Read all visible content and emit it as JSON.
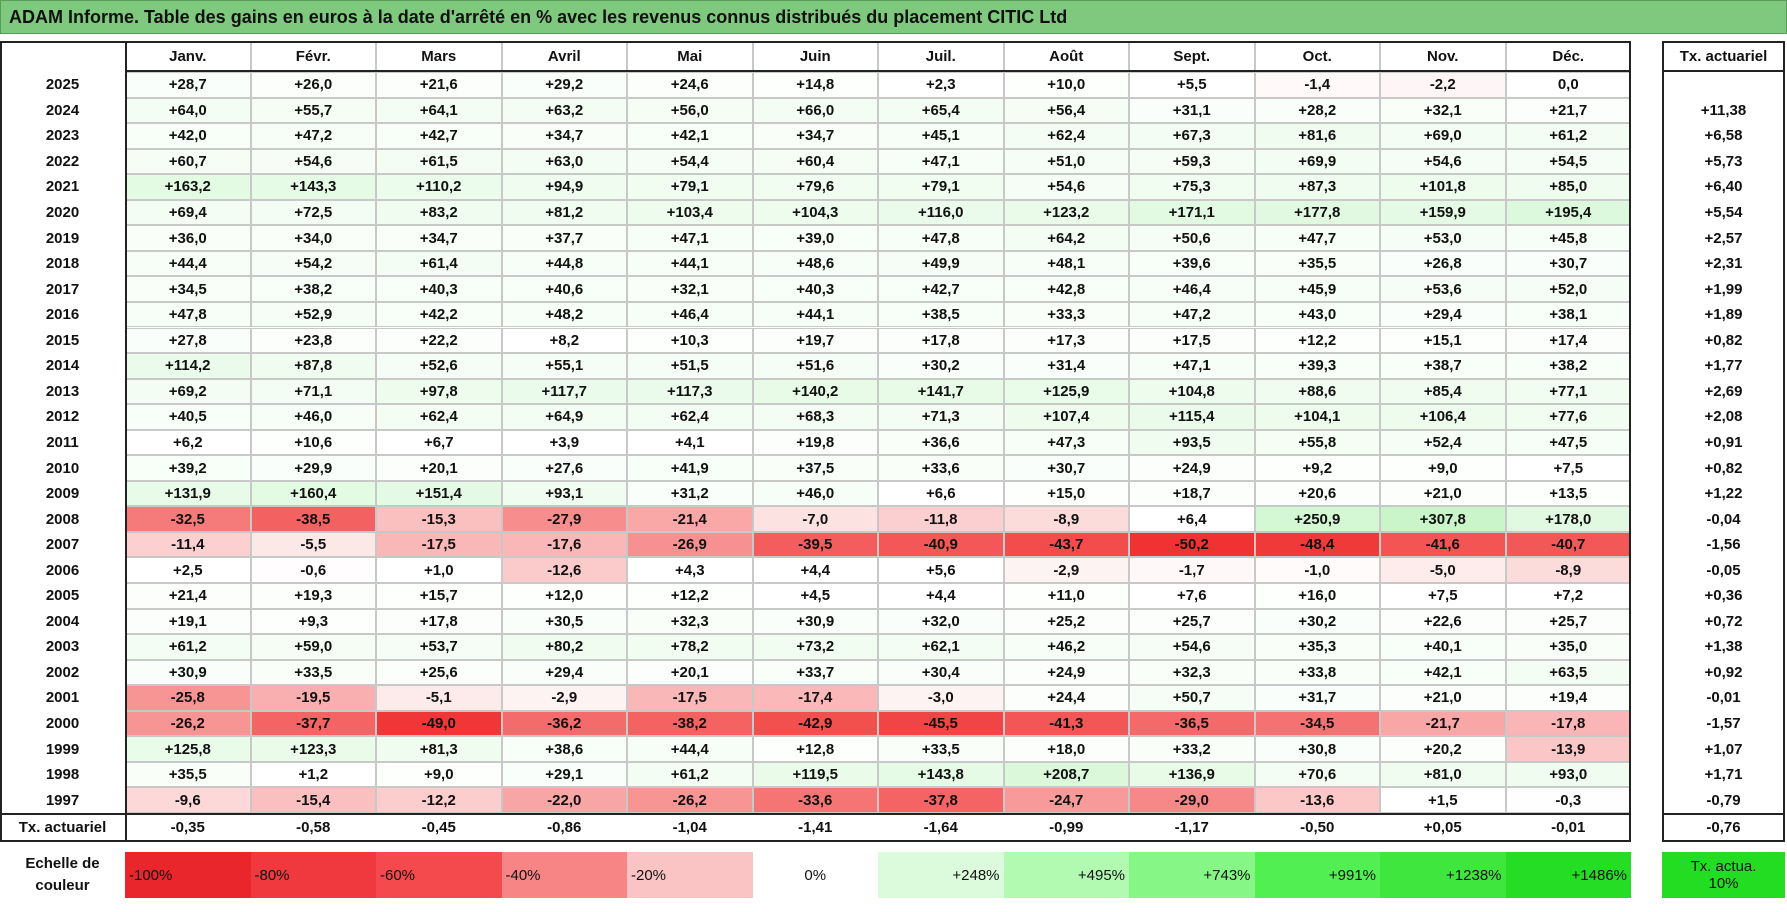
{
  "header": {
    "title": "ADAM Informe. Table des gains en euros à la date d'arrêté en % avec les revenus connus distribués du placement CITIC Ltd"
  },
  "table": {
    "columns": [
      "Janv.",
      "Févr.",
      "Mars",
      "Avril",
      "Mai",
      "Juin",
      "Juil.",
      "Août",
      "Sept.",
      "Oct.",
      "Nov.",
      "Déc."
    ],
    "rate_column": "Tx. actuariel",
    "rows": [
      {
        "label": "2025",
        "values": [
          "+28,7",
          "+26,0",
          "+21,6",
          "+29,2",
          "+24,6",
          "+14,8",
          "+2,3",
          "+10,0",
          "+5,5",
          "-1,4",
          "-2,2",
          "0,0"
        ]
      },
      {
        "label": "2024",
        "values": [
          "+64,0",
          "+55,7",
          "+64,1",
          "+63,2",
          "+56,0",
          "+66,0",
          "+65,4",
          "+56,4",
          "+31,1",
          "+28,2",
          "+32,1",
          "+21,7"
        ],
        "rate": "+11,38"
      },
      {
        "label": "2023",
        "values": [
          "+42,0",
          "+47,2",
          "+42,7",
          "+34,7",
          "+42,1",
          "+34,7",
          "+45,1",
          "+62,4",
          "+67,3",
          "+81,6",
          "+69,0",
          "+61,2"
        ],
        "rate": "+6,58"
      },
      {
        "label": "2022",
        "values": [
          "+60,7",
          "+54,6",
          "+61,5",
          "+63,0",
          "+54,4",
          "+60,4",
          "+47,1",
          "+51,0",
          "+59,3",
          "+69,9",
          "+54,6",
          "+54,5"
        ],
        "rate": "+5,73"
      },
      {
        "label": "2021",
        "values": [
          "+163,2",
          "+143,3",
          "+110,2",
          "+94,9",
          "+79,1",
          "+79,6",
          "+79,1",
          "+54,6",
          "+75,3",
          "+87,3",
          "+101,8",
          "+85,0"
        ],
        "rate": "+6,40"
      },
      {
        "label": "2020",
        "values": [
          "+69,4",
          "+72,5",
          "+83,2",
          "+81,2",
          "+103,4",
          "+104,3",
          "+116,0",
          "+123,2",
          "+171,1",
          "+177,8",
          "+159,9",
          "+195,4"
        ],
        "rate": "+5,54"
      },
      {
        "label": "2019",
        "values": [
          "+36,0",
          "+34,0",
          "+34,7",
          "+37,7",
          "+47,1",
          "+39,0",
          "+47,8",
          "+64,2",
          "+50,6",
          "+47,7",
          "+53,0",
          "+45,8"
        ],
        "rate": "+2,57"
      },
      {
        "label": "2018",
        "values": [
          "+44,4",
          "+54,2",
          "+61,4",
          "+44,8",
          "+44,1",
          "+48,6",
          "+49,9",
          "+48,1",
          "+39,6",
          "+35,5",
          "+26,8",
          "+30,7"
        ],
        "rate": "+2,31"
      },
      {
        "label": "2017",
        "values": [
          "+34,5",
          "+38,2",
          "+40,3",
          "+40,6",
          "+32,1",
          "+40,3",
          "+42,7",
          "+42,8",
          "+46,4",
          "+45,9",
          "+53,6",
          "+52,0"
        ],
        "rate": "+1,99"
      },
      {
        "label": "2016",
        "values": [
          "+47,8",
          "+52,9",
          "+42,2",
          "+48,2",
          "+46,4",
          "+44,1",
          "+38,5",
          "+33,3",
          "+47,2",
          "+43,0",
          "+29,4",
          "+38,1"
        ],
        "rate": "+1,89"
      },
      {
        "label": "2015",
        "values": [
          "+27,8",
          "+23,8",
          "+22,2",
          "+8,2",
          "+10,3",
          "+19,7",
          "+17,8",
          "+17,3",
          "+17,5",
          "+12,2",
          "+15,1",
          "+17,4"
        ],
        "rate": "+0,82"
      },
      {
        "label": "2014",
        "values": [
          "+114,2",
          "+87,8",
          "+52,6",
          "+55,1",
          "+51,5",
          "+51,6",
          "+30,2",
          "+31,4",
          "+47,1",
          "+39,3",
          "+38,7",
          "+38,2"
        ],
        "rate": "+1,77"
      },
      {
        "label": "2013",
        "values": [
          "+69,2",
          "+71,1",
          "+97,8",
          "+117,7",
          "+117,3",
          "+140,2",
          "+141,7",
          "+125,9",
          "+104,8",
          "+88,6",
          "+85,4",
          "+77,1"
        ],
        "rate": "+2,69"
      },
      {
        "label": "2012",
        "values": [
          "+40,5",
          "+46,0",
          "+62,4",
          "+64,9",
          "+62,4",
          "+68,3",
          "+71,3",
          "+107,4",
          "+115,4",
          "+104,1",
          "+106,4",
          "+77,6"
        ],
        "rate": "+2,08"
      },
      {
        "label": "2011",
        "values": [
          "+6,2",
          "+10,6",
          "+6,7",
          "+3,9",
          "+4,1",
          "+19,8",
          "+36,6",
          "+47,3",
          "+93,5",
          "+55,8",
          "+52,4",
          "+47,5"
        ],
        "rate": "+0,91"
      },
      {
        "label": "2010",
        "values": [
          "+39,2",
          "+29,9",
          "+20,1",
          "+27,6",
          "+41,9",
          "+37,5",
          "+33,6",
          "+30,7",
          "+24,9",
          "+9,2",
          "+9,0",
          "+7,5"
        ],
        "rate": "+0,82"
      },
      {
        "label": "2009",
        "values": [
          "+131,9",
          "+160,4",
          "+151,4",
          "+93,1",
          "+31,2",
          "+46,0",
          "+6,6",
          "+15,0",
          "+18,7",
          "+20,6",
          "+21,0",
          "+13,5"
        ],
        "rate": "+1,22"
      },
      {
        "label": "2008",
        "values": [
          "-32,5",
          "-38,5",
          "-15,3",
          "-27,9",
          "-21,4",
          "-7,0",
          "-11,8",
          "-8,9",
          "+6,4",
          "+250,9",
          "+307,8",
          "+178,0"
        ],
        "rate": "-0,04"
      },
      {
        "label": "2007",
        "values": [
          "-11,4",
          "-5,5",
          "-17,5",
          "-17,6",
          "-26,9",
          "-39,5",
          "-40,9",
          "-43,7",
          "-50,2",
          "-48,4",
          "-41,6",
          "-40,7"
        ],
        "rate": "-1,56"
      },
      {
        "label": "2006",
        "values": [
          "+2,5",
          "-0,6",
          "+1,0",
          "-12,6",
          "+4,3",
          "+4,4",
          "+5,6",
          "-2,9",
          "-1,7",
          "-1,0",
          "-5,0",
          "-8,9"
        ],
        "rate": "-0,05"
      },
      {
        "label": "2005",
        "values": [
          "+21,4",
          "+19,3",
          "+15,7",
          "+12,0",
          "+12,2",
          "+4,5",
          "+4,4",
          "+11,0",
          "+7,6",
          "+16,0",
          "+7,5",
          "+7,2"
        ],
        "rate": "+0,36"
      },
      {
        "label": "2004",
        "values": [
          "+19,1",
          "+9,3",
          "+17,8",
          "+30,5",
          "+32,3",
          "+30,9",
          "+32,0",
          "+25,2",
          "+25,7",
          "+30,2",
          "+22,6",
          "+25,7"
        ],
        "rate": "+0,72"
      },
      {
        "label": "2003",
        "values": [
          "+61,2",
          "+59,0",
          "+53,7",
          "+80,2",
          "+78,2",
          "+73,2",
          "+62,1",
          "+46,2",
          "+54,6",
          "+35,3",
          "+40,1",
          "+35,0"
        ],
        "rate": "+1,38"
      },
      {
        "label": "2002",
        "values": [
          "+30,9",
          "+33,5",
          "+25,6",
          "+29,4",
          "+20,1",
          "+33,7",
          "+30,4",
          "+24,9",
          "+32,3",
          "+33,8",
          "+42,1",
          "+63,5"
        ],
        "rate": "+0,92"
      },
      {
        "label": "2001",
        "values": [
          "-25,8",
          "-19,5",
          "-5,1",
          "-2,9",
          "-17,5",
          "-17,4",
          "-3,0",
          "+24,4",
          "+50,7",
          "+31,7",
          "+21,0",
          "+19,4"
        ],
        "rate": "-0,01"
      },
      {
        "label": "2000",
        "values": [
          "-26,2",
          "-37,7",
          "-49,0",
          "-36,2",
          "-38,2",
          "-42,9",
          "-45,5",
          "-41,3",
          "-36,5",
          "-34,5",
          "-21,7",
          "-17,8"
        ],
        "rate": "-1,57"
      },
      {
        "label": "1999",
        "values": [
          "+125,8",
          "+123,3",
          "+81,3",
          "+38,6",
          "+44,4",
          "+12,8",
          "+33,5",
          "+18,0",
          "+33,2",
          "+30,8",
          "+20,2",
          "-13,9"
        ],
        "rate": "+1,07"
      },
      {
        "label": "1998",
        "values": [
          "+35,5",
          "+1,2",
          "+9,0",
          "+29,1",
          "+61,2",
          "+119,5",
          "+143,8",
          "+208,7",
          "+136,9",
          "+70,6",
          "+81,0",
          "+93,0"
        ],
        "rate": "+1,71"
      },
      {
        "label": "1997",
        "values": [
          "-9,6",
          "-15,4",
          "-12,2",
          "-22,0",
          "-26,2",
          "-33,6",
          "-37,8",
          "-24,7",
          "-29,0",
          "-13,6",
          "+1,5",
          "-0,3"
        ],
        "rate": "-0,79"
      }
    ],
    "footer": {
      "label": "Tx. actuariel",
      "values": [
        "-0,35",
        "-0,58",
        "-0,45",
        "-0,86",
        "-1,04",
        "-1,41",
        "-1,64",
        "-0,99",
        "-1,17",
        "-0,50",
        "+0,05",
        "-0,01"
      ],
      "rate": "-0,76"
    }
  },
  "scale": {
    "label": "Echelle de couleur",
    "steps": [
      "-100%",
      "-80%",
      "-60%",
      "-40%",
      "-20%",
      "0%",
      "+248%",
      "+495%",
      "+743%",
      "+991%",
      "+1238%",
      "+1486%"
    ],
    "rate_label": "Tx. actua. 10%"
  }
}
